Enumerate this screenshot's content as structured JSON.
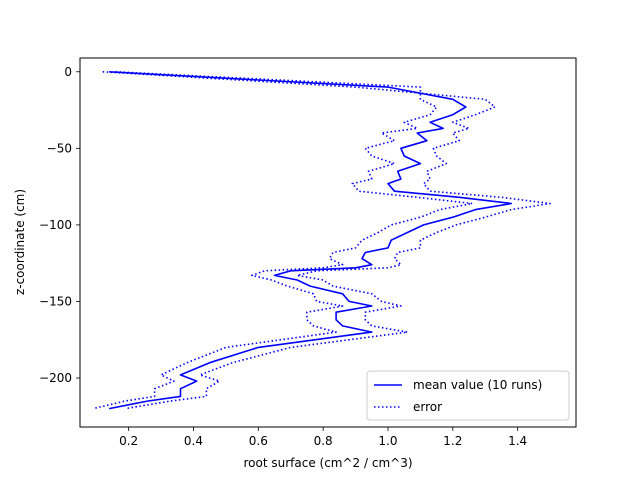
{
  "chart_data": {
    "type": "line",
    "title": "",
    "xlabel": "root surface (cm^2 / cm^3)",
    "ylabel": "z-coordinate (cm)",
    "xlim": [
      0.05,
      1.58
    ],
    "ylim": [
      -232,
      9
    ],
    "xticks": [
      0.2,
      0.4,
      0.6,
      0.8,
      1.0,
      1.2,
      1.4
    ],
    "xtick_labels": [
      "0.2",
      "0.4",
      "0.6",
      "0.8",
      "1.0",
      "1.2",
      "1.4"
    ],
    "yticks": [
      0,
      -50,
      -100,
      -150,
      -200
    ],
    "ytick_labels": [
      "0",
      "−50",
      "−100",
      "−150",
      "−200"
    ],
    "grid": false,
    "legend_position": "lower-right",
    "color": "#0000ff",
    "series": [
      {
        "name": "mean value (10 runs)",
        "style": "solid",
        "points": [
          [
            0.14,
            0
          ],
          [
            1.0,
            -10
          ],
          [
            1.2,
            -18
          ],
          [
            1.24,
            -23
          ],
          [
            1.2,
            -28
          ],
          [
            1.13,
            -33
          ],
          [
            1.17,
            -37
          ],
          [
            1.09,
            -40
          ],
          [
            1.12,
            -45
          ],
          [
            1.04,
            -50
          ],
          [
            1.05,
            -55
          ],
          [
            1.1,
            -60
          ],
          [
            1.03,
            -65
          ],
          [
            1.04,
            -70
          ],
          [
            1.0,
            -73
          ],
          [
            1.02,
            -78
          ],
          [
            1.22,
            -82
          ],
          [
            1.38,
            -86
          ],
          [
            1.27,
            -90
          ],
          [
            1.2,
            -95
          ],
          [
            1.11,
            -100
          ],
          [
            1.06,
            -105
          ],
          [
            1.01,
            -110
          ],
          [
            1.0,
            -115
          ],
          [
            0.93,
            -118
          ],
          [
            0.92,
            -122
          ],
          [
            0.95,
            -126
          ],
          [
            0.9,
            -128
          ],
          [
            0.7,
            -130
          ],
          [
            0.65,
            -133
          ],
          [
            0.72,
            -136
          ],
          [
            0.76,
            -140
          ],
          [
            0.86,
            -145
          ],
          [
            0.88,
            -150
          ],
          [
            0.95,
            -153
          ],
          [
            0.84,
            -157
          ],
          [
            0.84,
            -162
          ],
          [
            0.86,
            -166
          ],
          [
            0.95,
            -170
          ],
          [
            0.6,
            -180
          ],
          [
            0.45,
            -190
          ],
          [
            0.36,
            -198
          ],
          [
            0.41,
            -202
          ],
          [
            0.36,
            -207
          ],
          [
            0.36,
            -212
          ],
          [
            0.26,
            -215
          ],
          [
            0.14,
            -220
          ]
        ]
      },
      {
        "name": "error",
        "style": "dotted",
        "points": [
          [
            0.12,
            0
          ],
          [
            0.9,
            -10
          ],
          [
            1.3,
            -18
          ],
          [
            1.33,
            -23
          ],
          [
            1.27,
            -28
          ],
          [
            1.2,
            -33
          ],
          [
            1.25,
            -37
          ],
          [
            1.2,
            -40
          ],
          [
            1.22,
            -45
          ],
          [
            1.14,
            -50
          ],
          [
            1.15,
            -55
          ],
          [
            1.18,
            -60
          ],
          [
            1.12,
            -65
          ],
          [
            1.13,
            -70
          ],
          [
            1.11,
            -73
          ],
          [
            1.13,
            -78
          ],
          [
            1.35,
            -82
          ],
          [
            1.5,
            -86
          ],
          [
            1.38,
            -90
          ],
          [
            1.3,
            -95
          ],
          [
            1.21,
            -100
          ],
          [
            1.15,
            -105
          ],
          [
            1.1,
            -110
          ],
          [
            1.1,
            -115
          ],
          [
            1.03,
            -118
          ],
          [
            1.02,
            -122
          ],
          [
            1.04,
            -126
          ],
          [
            1.0,
            -128
          ],
          [
            0.78,
            -130
          ],
          [
            0.72,
            -133
          ],
          [
            0.8,
            -136
          ],
          [
            0.83,
            -140
          ],
          [
            0.95,
            -145
          ],
          [
            0.98,
            -150
          ],
          [
            1.04,
            -153
          ],
          [
            0.93,
            -157
          ],
          [
            0.93,
            -162
          ],
          [
            0.95,
            -166
          ],
          [
            1.06,
            -170
          ],
          [
            0.7,
            -180
          ],
          [
            0.52,
            -190
          ],
          [
            0.42,
            -198
          ],
          [
            0.48,
            -202
          ],
          [
            0.44,
            -207
          ],
          [
            0.44,
            -212
          ],
          [
            0.33,
            -215
          ],
          [
            0.19,
            -220
          ]
        ]
      },
      {
        "name": "",
        "style": "dotted",
        "points": [
          [
            0.16,
            0
          ],
          [
            1.1,
            -10
          ],
          [
            1.1,
            -18
          ],
          [
            1.15,
            -23
          ],
          [
            1.13,
            -28
          ],
          [
            1.05,
            -33
          ],
          [
            1.09,
            -37
          ],
          [
            0.98,
            -40
          ],
          [
            1.02,
            -45
          ],
          [
            0.93,
            -50
          ],
          [
            0.95,
            -55
          ],
          [
            1.02,
            -60
          ],
          [
            0.94,
            -65
          ],
          [
            0.95,
            -70
          ],
          [
            0.89,
            -73
          ],
          [
            0.91,
            -78
          ],
          [
            1.09,
            -82
          ],
          [
            1.26,
            -86
          ],
          [
            1.16,
            -90
          ],
          [
            1.1,
            -95
          ],
          [
            1.01,
            -100
          ],
          [
            0.97,
            -105
          ],
          [
            0.92,
            -110
          ],
          [
            0.9,
            -115
          ],
          [
            0.83,
            -118
          ],
          [
            0.82,
            -122
          ],
          [
            0.86,
            -126
          ],
          [
            0.8,
            -128
          ],
          [
            0.62,
            -130
          ],
          [
            0.58,
            -133
          ],
          [
            0.64,
            -136
          ],
          [
            0.69,
            -140
          ],
          [
            0.77,
            -145
          ],
          [
            0.78,
            -150
          ],
          [
            0.86,
            -153
          ],
          [
            0.75,
            -157
          ],
          [
            0.75,
            -162
          ],
          [
            0.77,
            -166
          ],
          [
            0.84,
            -170
          ],
          [
            0.5,
            -180
          ],
          [
            0.38,
            -190
          ],
          [
            0.3,
            -198
          ],
          [
            0.34,
            -202
          ],
          [
            0.28,
            -207
          ],
          [
            0.28,
            -212
          ],
          [
            0.19,
            -215
          ],
          [
            0.09,
            -220
          ]
        ]
      }
    ]
  }
}
